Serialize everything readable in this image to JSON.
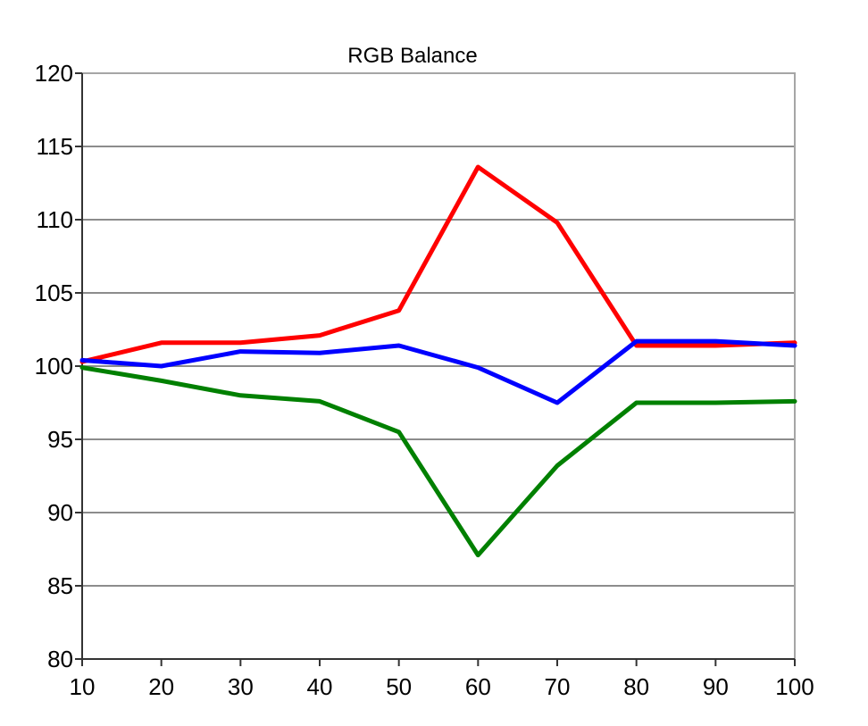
{
  "chart_data": {
    "type": "line",
    "title": "RGB Balance",
    "xlabel": "",
    "ylabel": "",
    "x": [
      10,
      20,
      30,
      40,
      50,
      60,
      70,
      80,
      90,
      100
    ],
    "xlim": [
      10,
      100
    ],
    "ylim": [
      80,
      120
    ],
    "x_ticks": [
      "10",
      "20",
      "30",
      "40",
      "50",
      "60",
      "70",
      "80",
      "90",
      "100"
    ],
    "y_ticks": [
      "80",
      "85",
      "90",
      "95",
      "100",
      "105",
      "110",
      "115",
      "120"
    ],
    "grid": true,
    "legend": "none",
    "series": [
      {
        "color": "#ff0000",
        "values": [
          100.3,
          101.6,
          101.6,
          102.1,
          103.8,
          113.6,
          109.8,
          101.4,
          101.4,
          101.6
        ]
      },
      {
        "color": "#0000ff",
        "values": [
          100.4,
          100.0,
          101.0,
          100.9,
          101.4,
          99.9,
          97.5,
          101.7,
          101.7,
          101.4
        ]
      },
      {
        "color": "#008000",
        "values": [
          99.9,
          99.0,
          98.0,
          97.6,
          95.5,
          87.1,
          93.2,
          97.5,
          97.5,
          97.6
        ]
      }
    ]
  }
}
